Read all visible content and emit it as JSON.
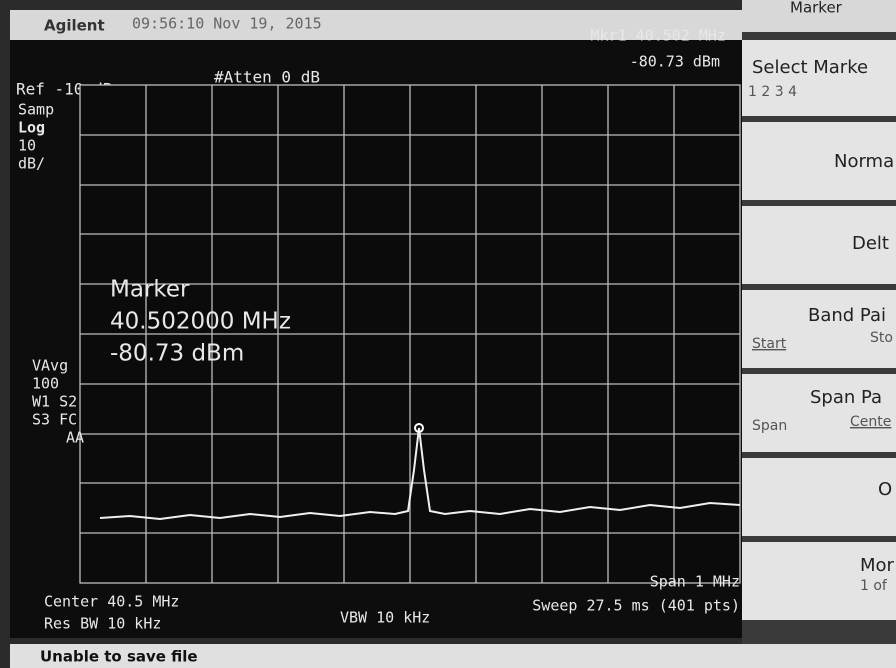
{
  "header": {
    "brand": "Agilent",
    "timestamp": "09:56:10 Nov 19, 2015"
  },
  "marker_readout": {
    "frequency": "Mkr1 40.502 MHz",
    "amplitude": "-80.73 dBm"
  },
  "settings": {
    "ref": "Ref -10 dBm",
    "atten": "#Atten 0 dB"
  },
  "left_labels": [
    "Samp",
    "Log",
    "10",
    "dB/",
    "VAvg",
    "100",
    "W1 S2",
    "S3 FC",
    "AA"
  ],
  "marker_box": {
    "title": "Marker",
    "frequency": "40.502000 MHz",
    "amplitude": "-80.73 dBm"
  },
  "footer": {
    "center": "Center 40.5 MHz",
    "res_bw": "Res BW 10 kHz",
    "vbw": "VBW 10 kHz",
    "span": "Span 1 MHz",
    "sweep": "Sweep 27.5 ms (401 pts)"
  },
  "status": "Unable to save file",
  "softkeys": {
    "menu_title": "Marker",
    "select": "Select Marke",
    "select_options": "1  2  3  4",
    "normal": "Norma",
    "delta": "Delt",
    "band_pair": "Band Pai",
    "band_start": "Start",
    "band_stop": "Sto",
    "span_pair": "Span Pa",
    "span_span": "Span",
    "span_center": "Cente",
    "off": "O",
    "more": "Mor",
    "more_page": "1 of"
  }
}
